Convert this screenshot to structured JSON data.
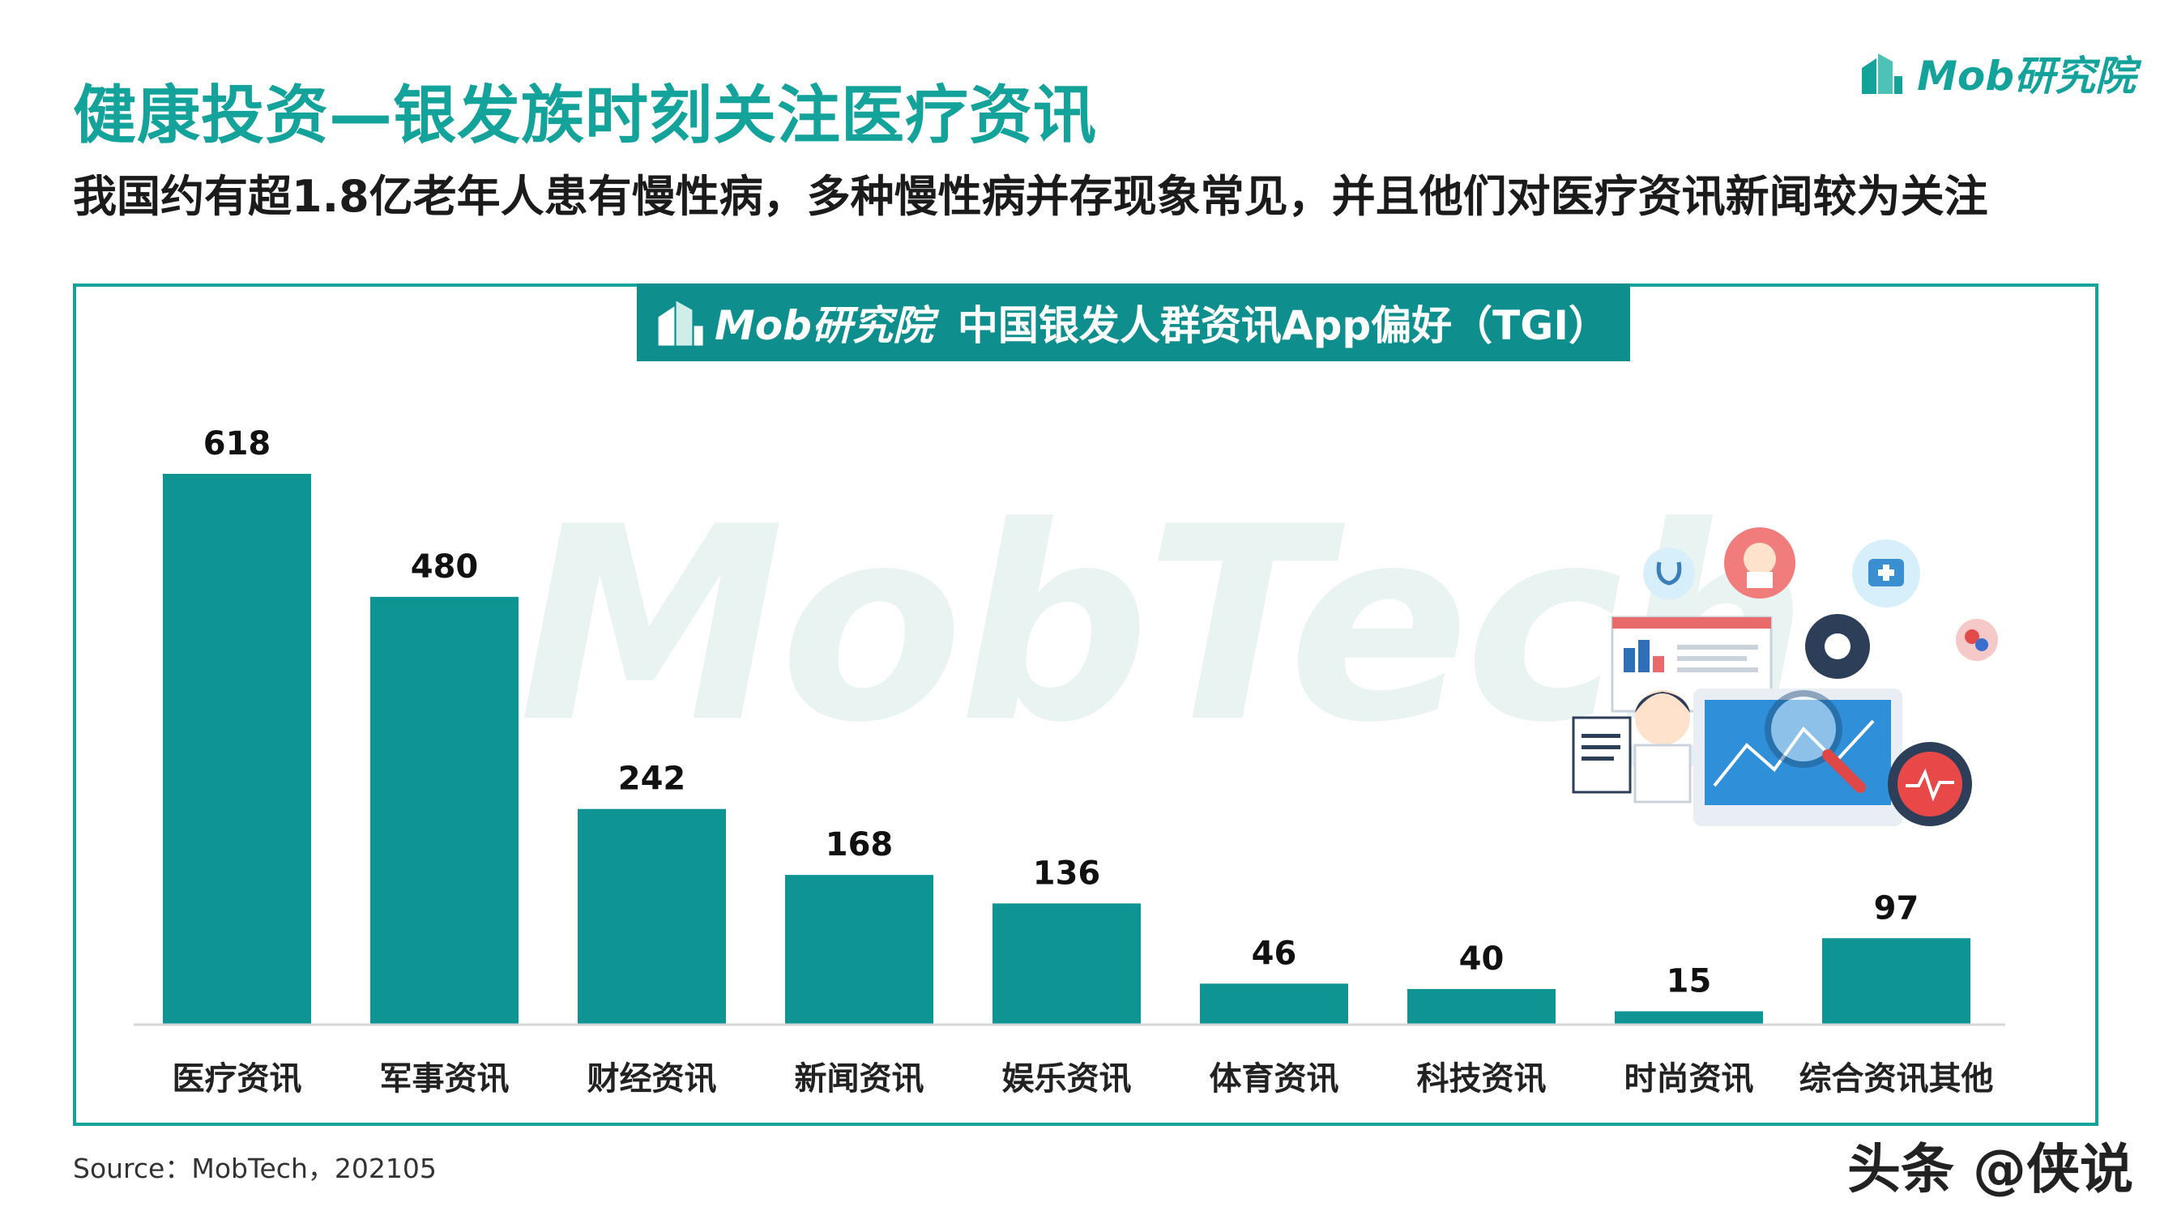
{
  "page": {
    "title": "健康投资—银发族时刻关注医疗资讯",
    "subtitle": "我国约有超1.8亿老年人患有慢性病，多种慢性病并存现象常见，并且他们对医疗资讯新闻较为关注",
    "brand": "Mob研究院",
    "source": "Source：MobTech，202105",
    "overlay_watermark": "头条 @侠说",
    "background_watermark": "MobTech",
    "accent_color": "#14A39B",
    "bar_color": "#0E9492"
  },
  "chart_data": {
    "type": "bar",
    "title": "中国银发人群资讯App偏好（TGI）",
    "brand_label": "Mob研究院",
    "categories": [
      "医疗资讯",
      "军事资讯",
      "财经资讯",
      "新闻资讯",
      "娱乐资讯",
      "体育资讯",
      "科技资讯",
      "时尚资讯",
      "综合资讯其他"
    ],
    "values": [
      618,
      480,
      242,
      168,
      136,
      46,
      40,
      15,
      97
    ],
    "xlabel": "",
    "ylabel": "",
    "ylim": [
      0,
      618
    ],
    "grid": false
  }
}
